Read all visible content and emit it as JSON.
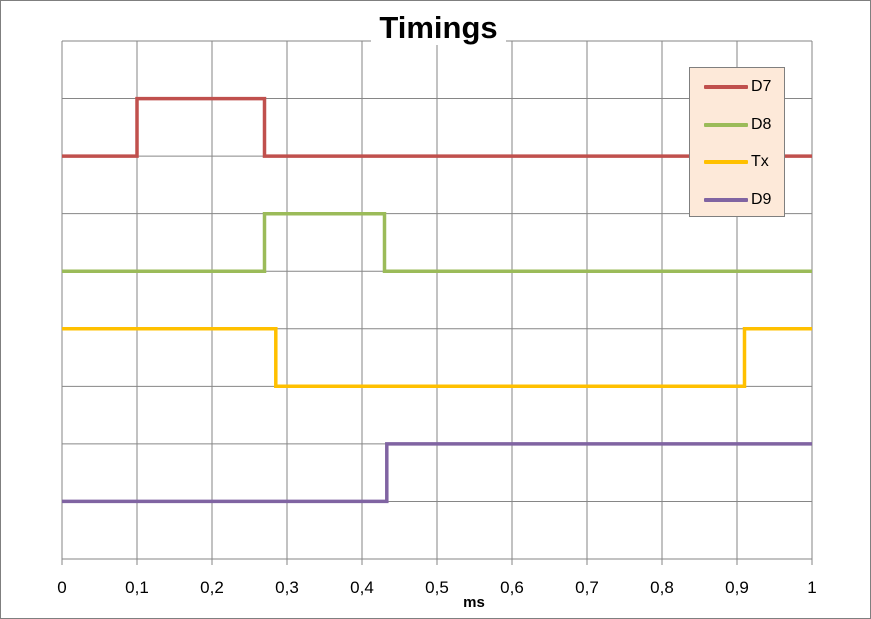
{
  "chart_data": {
    "type": "line",
    "title": "Timings",
    "xlabel": "ms",
    "ylabel": "",
    "xlim": [
      0,
      1
    ],
    "x_ticks": [
      "0",
      "0,1",
      "0,2",
      "0,3",
      "0,4",
      "0,5",
      "0,6",
      "0,7",
      "0,8",
      "0,9",
      "1"
    ],
    "grid": true,
    "legend_position": "top-right",
    "series": [
      {
        "name": "D7",
        "color": "#c0504d",
        "low": 0,
        "high": 1,
        "x": [
          0,
          0.1,
          0.1,
          0.27,
          0.27,
          1
        ],
        "levels": [
          "low",
          "low",
          "high",
          "high",
          "low",
          "low"
        ]
      },
      {
        "name": "D8",
        "color": "#9bbb59",
        "low": 0,
        "high": 1,
        "x": [
          0,
          0.27,
          0.27,
          0.43,
          0.43,
          1
        ],
        "levels": [
          "low",
          "low",
          "high",
          "high",
          "low",
          "low"
        ]
      },
      {
        "name": "Tx",
        "color": "#ffc000",
        "low": 0,
        "high": 1,
        "x": [
          0,
          0.285,
          0.285,
          0.91,
          0.91,
          1
        ],
        "levels": [
          "high",
          "high",
          "low",
          "low",
          "high",
          "high"
        ]
      },
      {
        "name": "D9",
        "color": "#8064a2",
        "low": 0,
        "high": 1,
        "x": [
          0,
          0.433,
          0.433,
          1
        ],
        "levels": [
          "low",
          "low",
          "high",
          "high"
        ]
      }
    ]
  }
}
